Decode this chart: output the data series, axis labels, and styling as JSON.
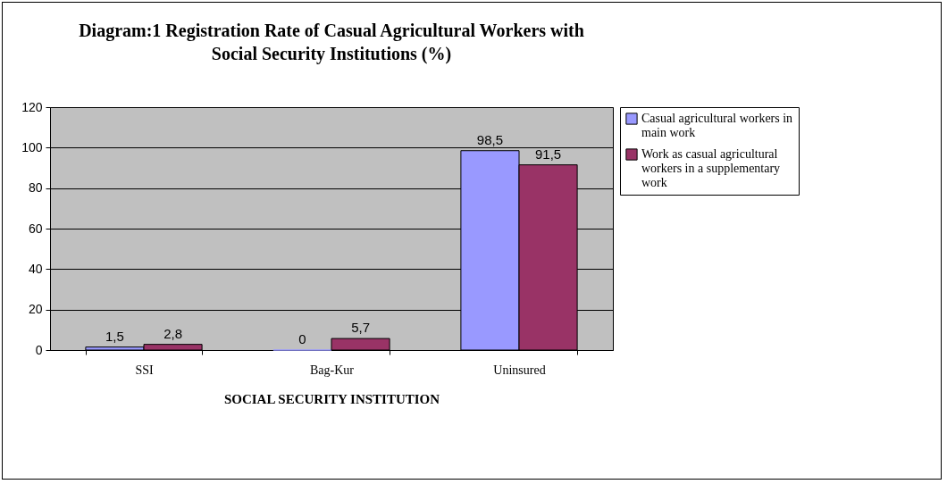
{
  "chart_data": {
    "type": "bar",
    "title": "Diagram:1 Registration Rate of Casual Agricultural Workers with Social Security Institutions (%)",
    "xlabel": "SOCIAL SECURITY INSTITUTION",
    "categories": [
      "SSI",
      "Bag-Kur",
      "Uninsured"
    ],
    "series": [
      {
        "name": "Casual agricultural workers in main work",
        "color": "#9999ff",
        "values": [
          1.5,
          0,
          98.5
        ],
        "value_labels": [
          "1,5",
          "0",
          "98,5"
        ]
      },
      {
        "name": "Work as casual agricultural workers in a supplementary work",
        "color": "#993366",
        "values": [
          2.8,
          5.7,
          91.5
        ],
        "value_labels": [
          "2,8",
          "5,7",
          "91,5"
        ]
      }
    ],
    "ylim": [
      0,
      120
    ],
    "yticks": [
      0,
      20,
      40,
      60,
      80,
      100,
      120
    ],
    "grid": "y",
    "legend": "right"
  }
}
